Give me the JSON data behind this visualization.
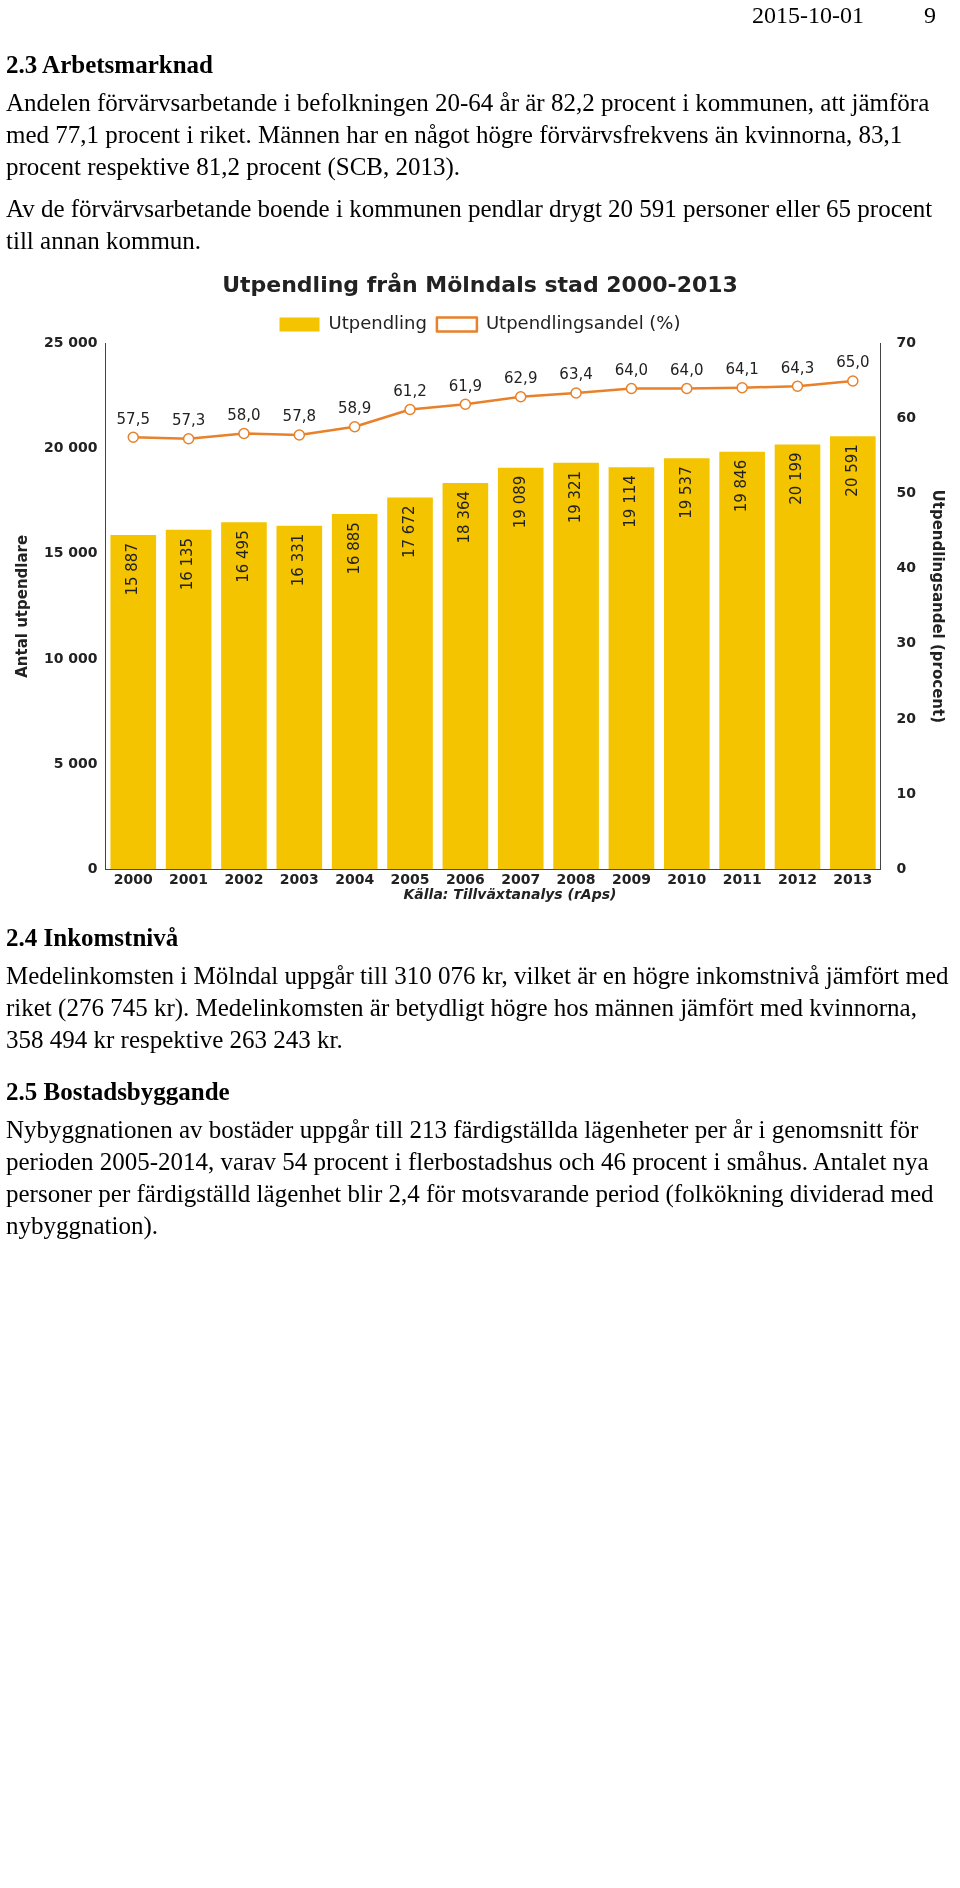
{
  "chart_data": {
    "type": "bar",
    "title": "Utpendling från Mölndals stad 2000-2013",
    "categories": [
      "2000",
      "2001",
      "2002",
      "2003",
      "2004",
      "2005",
      "2006",
      "2007",
      "2008",
      "2009",
      "2010",
      "2011",
      "2012",
      "2013"
    ],
    "series": [
      {
        "name": "Utpendling",
        "color": "#f5c400",
        "values": [
          15887,
          16135,
          16495,
          16331,
          16885,
          17672,
          18364,
          19089,
          19321,
          19114,
          19537,
          19846,
          20199,
          20591
        ],
        "value_labels": [
          "15 887",
          "16 135",
          "16 495",
          "16 331",
          "16 885",
          "17 672",
          "18 364",
          "19 089",
          "19 321",
          "19 114",
          "19 537",
          "19 846",
          "20 199",
          "20 591"
        ]
      },
      {
        "name": "Utpendlingsandel (%)",
        "type": "line",
        "axis": "y2",
        "color": "#e8812a",
        "marker": "circle",
        "values": [
          57.5,
          57.3,
          58.0,
          57.8,
          58.9,
          61.2,
          61.9,
          62.9,
          63.4,
          64.0,
          64.0,
          64.1,
          64.3,
          65.0
        ],
        "value_labels": [
          "57,5",
          "57,3",
          "58,0",
          "57,8",
          "58,9",
          "61,2",
          "61,9",
          "62,9",
          "63,4",
          "64,0",
          "64,0",
          "64,1",
          "64,3",
          "65,0"
        ]
      }
    ],
    "ylabel": "Antal utpendlare",
    "y2label": "Utpendlingsandel (procent)",
    "ylim": [
      0,
      25000
    ],
    "yticks": [
      {
        "value": 0,
        "label": "0"
      },
      {
        "value": 5000,
        "label": "5 000"
      },
      {
        "value": 10000,
        "label": "10 000"
      },
      {
        "value": 15000,
        "label": "15 000"
      },
      {
        "value": 20000,
        "label": "20 000"
      },
      {
        "value": 25000,
        "label": "25 000"
      }
    ],
    "y2lim": [
      0,
      70
    ],
    "y2ticks": [
      0,
      10,
      20,
      30,
      40,
      50,
      60,
      70
    ],
    "grid": false,
    "legend": "top",
    "annotations": [
      "2015-10-01",
      "9",
      "2.3 Arbetsmarknad",
      "Andelen förvärvsarbetande i befolkningen 20-64 år är 82,2 procent i kommunen, att jämföra med 77,1 procent i riket. Männen har en något högre förvärvsfrekvens än kvinnorna, 83,1 procent respektive 81,2 procent (SCB, 2013).",
      "Av de förvärvsarbetande boende i kommunen pendlar drygt 20 591 personer eller 65 procent till annan kommun.",
      "Källa: Tillväxtanalys (rAps)",
      "2.4 Inkomstnivå",
      "Medelinkomsten i Mölndal uppgår till 310 076 kr, vilket är en högre inkomstnivå jämfört med riket (276 745 kr). Medelinkomsten är betydligt högre hos männen jämfört med kvinnorna, 358 494 kr respektive 263 243 kr.",
      "2.5 Bostadsbyggande",
      "Nybyggnationen av bostäder uppgår till 213 färdigställda lägenheter per år i genomsnitt för perioden 2005-2014, varav 54 procent i flerbostadshus och 46 procent i småhus. Antalet nya personer per färdigställd lägenhet blir 2,4 för motsvarande period (folkökning dividerad med nybyggnation)."
    ]
  }
}
